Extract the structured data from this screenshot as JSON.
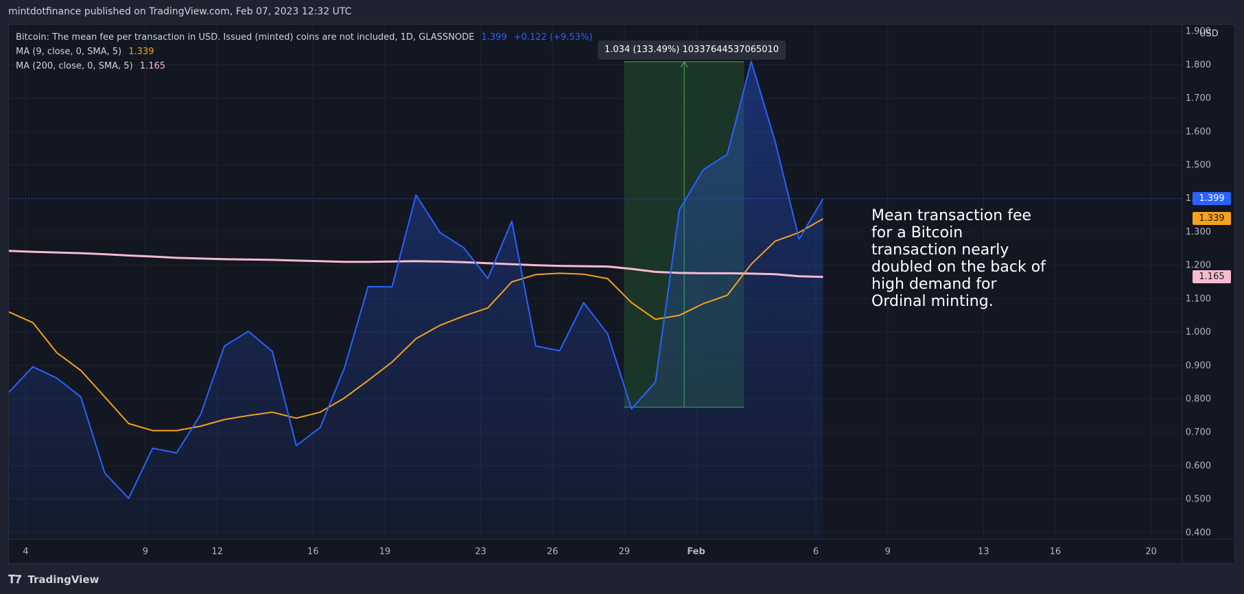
{
  "header": {
    "title": "mintdotfinance published on TradingView.com, Feb 07, 2023 12:32 UTC"
  },
  "legend": {
    "main_label": "Bitcoin: The mean fee per transaction in USD. Issued (minted) coins are not included, 1D, GLASSNODE",
    "main_value": "1.399",
    "main_change": "+0.122 (+9.53%)",
    "ma9_label": "MA (9, close, 0, SMA, 5)",
    "ma9_value": "1.339",
    "ma200_label": "MA (200, close, 0, SMA, 5)",
    "ma200_value": "1.165"
  },
  "axis": {
    "currency": "USD"
  },
  "measure": {
    "label": "1.034 (133.49%) 10337644537065010"
  },
  "price_tags": {
    "last": "1.399",
    "ma9": "1.339",
    "ma200": "1.165"
  },
  "annotation": {
    "text": "Mean transaction fee for a Bitcoin transaction nearly doubled on the back of high demand for Ordinal minting."
  },
  "footer": {
    "brand": "TradingView"
  },
  "colors": {
    "main_line": "#2962ff",
    "ma9": "#f7a21b",
    "ma200": "#f8bbd0",
    "measure_fill": "#1e3b2a",
    "measure_line": "#4caf50",
    "background": "#131722",
    "grid": "#1f2330"
  },
  "chart_data": {
    "type": "line",
    "title": "Bitcoin: The mean fee per transaction in USD",
    "ylabel": "USD",
    "ylim": [
      0.38,
      1.92
    ],
    "y_ticks": [
      0.4,
      0.5,
      0.6,
      0.7,
      0.8,
      0.9,
      1.0,
      1.1,
      1.2,
      1.3,
      1.4,
      1.5,
      1.6,
      1.7,
      1.8,
      1.9
    ],
    "x_ticks": [
      {
        "label": "4",
        "day": 3
      },
      {
        "label": "9",
        "day": 8
      },
      {
        "label": "12",
        "day": 11
      },
      {
        "label": "16",
        "day": 15
      },
      {
        "label": "19",
        "day": 18
      },
      {
        "label": "23",
        "day": 22
      },
      {
        "label": "26",
        "day": 25
      },
      {
        "label": "29",
        "day": 28
      },
      {
        "label": "Feb",
        "day": 31,
        "bold": true
      },
      {
        "label": "6",
        "day": 36
      },
      {
        "label": "9",
        "day": 39
      },
      {
        "label": "13",
        "day": 43
      },
      {
        "label": "16",
        "day": 46
      },
      {
        "label": "20",
        "day": 50
      }
    ],
    "x_range": [
      2.3,
      51.3
    ],
    "series": [
      {
        "name": "Mean fee per transaction",
        "start_day": 2.3,
        "values": [
          0.82,
          0.896,
          0.862,
          0.806,
          0.578,
          0.502,
          0.652,
          0.638,
          0.752,
          0.958,
          1.002,
          0.942,
          0.66,
          0.714,
          0.89,
          1.136,
          1.135,
          1.41,
          1.298,
          1.252,
          1.16,
          1.332,
          0.958,
          0.944,
          1.088,
          0.995,
          0.77,
          0.85,
          1.366,
          1.486,
          1.532,
          1.81,
          1.57,
          1.278,
          1.399
        ]
      },
      {
        "name": "MA (9, close, 0, SMA, 5)",
        "start_day": 2.3,
        "values": [
          1.06,
          1.028,
          0.938,
          0.885,
          0.806,
          0.726,
          0.705,
          0.705,
          0.718,
          0.738,
          0.75,
          0.76,
          0.742,
          0.76,
          0.802,
          0.855,
          0.91,
          0.98,
          1.02,
          1.048,
          1.072,
          1.15,
          1.172,
          1.176,
          1.173,
          1.16,
          1.088,
          1.038,
          1.05,
          1.085,
          1.11,
          1.203,
          1.272,
          1.298,
          1.339
        ]
      },
      {
        "name": "MA (200, close, 0, SMA, 5)",
        "start_day": 2.3,
        "values": [
          1.243,
          1.24,
          1.238,
          1.236,
          1.233,
          1.229,
          1.226,
          1.222,
          1.22,
          1.218,
          1.217,
          1.216,
          1.214,
          1.212,
          1.21,
          1.21,
          1.211,
          1.212,
          1.211,
          1.209,
          1.206,
          1.203,
          1.2,
          1.198,
          1.197,
          1.196,
          1.189,
          1.18,
          1.177,
          1.176,
          1.176,
          1.175,
          1.173,
          1.167,
          1.165
        ]
      }
    ],
    "last_price_line": 1.399,
    "measure_range": {
      "start_day": 28,
      "end_day": 33,
      "low": 0.775,
      "high": 1.809,
      "change": 1.034,
      "change_pct": 133.49
    }
  }
}
